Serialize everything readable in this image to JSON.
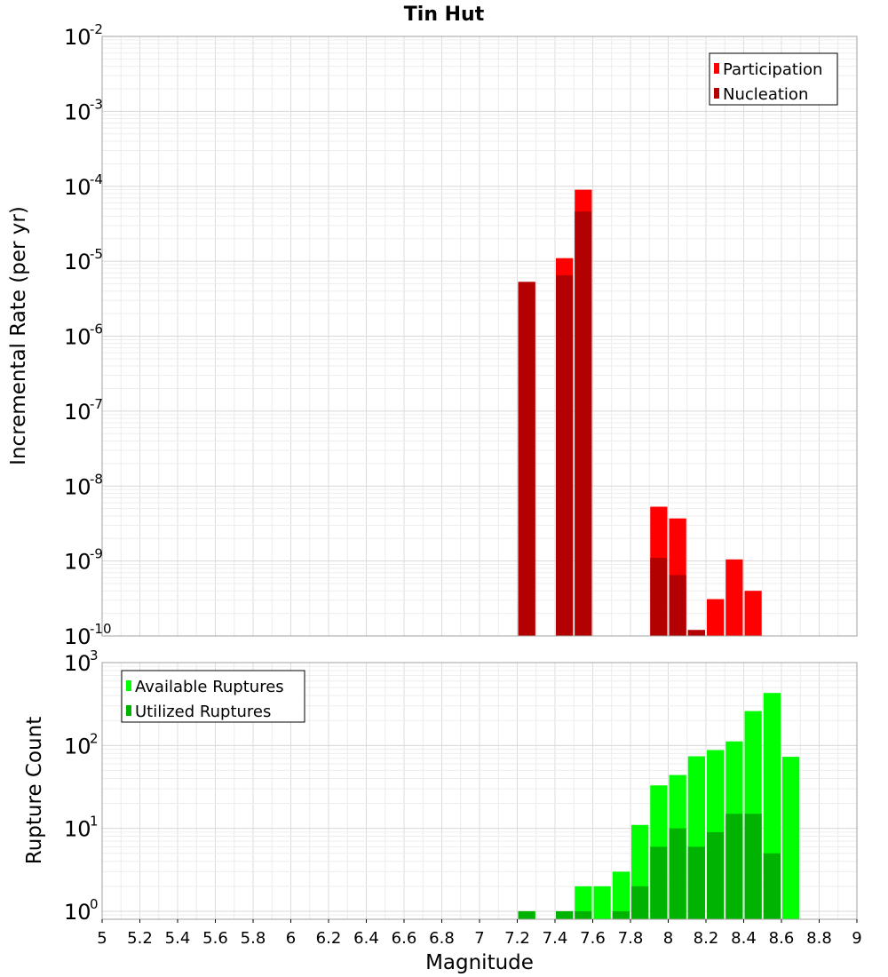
{
  "chart_data": [
    {
      "type": "bar",
      "title": "Tin Hut",
      "ylabel": "Incremental Rate (per yr)",
      "xlabel": "",
      "yscale": "log",
      "xlim": [
        5,
        9
      ],
      "ylim": [
        1e-10,
        0.01
      ],
      "ytick_exponents": [
        -10,
        -9,
        -8,
        -7,
        -6,
        -5,
        -4,
        -3,
        -2
      ],
      "grid": true,
      "legend_position": "top-right",
      "colors": {
        "Participation": "#ff0000",
        "Nucleation": "#b30000"
      },
      "series": [
        {
          "name": "Participation",
          "x": [
            7.25,
            7.45,
            7.55,
            7.95,
            8.05,
            8.15,
            8.25,
            8.35,
            8.45
          ],
          "values": [
            5.3e-06,
            1.1e-05,
            9e-05,
            5.3e-09,
            3.7e-09,
            1.2e-10,
            3.1e-10,
            1.05e-09,
            4e-10
          ]
        },
        {
          "name": "Nucleation",
          "x": [
            7.25,
            7.45,
            7.55,
            7.95,
            8.05,
            8.15
          ],
          "values": [
            5.3e-06,
            6.5e-06,
            4.6e-05,
            1.1e-09,
            6.5e-10,
            1.2e-10
          ]
        }
      ]
    },
    {
      "type": "bar",
      "xlabel": "Magnitude",
      "ylabel": "Rupture Count",
      "yscale": "log",
      "xlim": [
        5,
        9
      ],
      "ylim": [
        0.8,
        1000
      ],
      "ytick_exponents": [
        0,
        1,
        2,
        3
      ],
      "xticks": [
        "5",
        "5.2",
        "5.4",
        "5.6",
        "5.8",
        "6",
        "6.2",
        "6.4",
        "6.6",
        "6.8",
        "7",
        "7.2",
        "7.4",
        "7.6",
        "7.8",
        "8",
        "8.2",
        "8.4",
        "8.6",
        "8.8",
        "9"
      ],
      "grid": true,
      "legend_position": "top-left",
      "colors": {
        "Available Ruptures": "#00ff00",
        "Utilized Ruptures": "#00b300"
      },
      "series": [
        {
          "name": "Available Ruptures",
          "x": [
            7.25,
            7.45,
            7.55,
            7.65,
            7.75,
            7.85,
            7.95,
            8.05,
            8.15,
            8.25,
            8.35,
            8.45,
            8.55,
            8.65
          ],
          "values": [
            1,
            1,
            2,
            2,
            3,
            11,
            33,
            44,
            74,
            88,
            112,
            260,
            430,
            73
          ]
        },
        {
          "name": "Utilized Ruptures",
          "x": [
            7.25,
            7.45,
            7.55,
            7.75,
            7.85,
            7.95,
            8.05,
            8.15,
            8.25,
            8.35,
            8.45,
            8.55
          ],
          "values": [
            1,
            1,
            1,
            1,
            2,
            6,
            10,
            6,
            9,
            15,
            15,
            5
          ]
        }
      ]
    }
  ]
}
